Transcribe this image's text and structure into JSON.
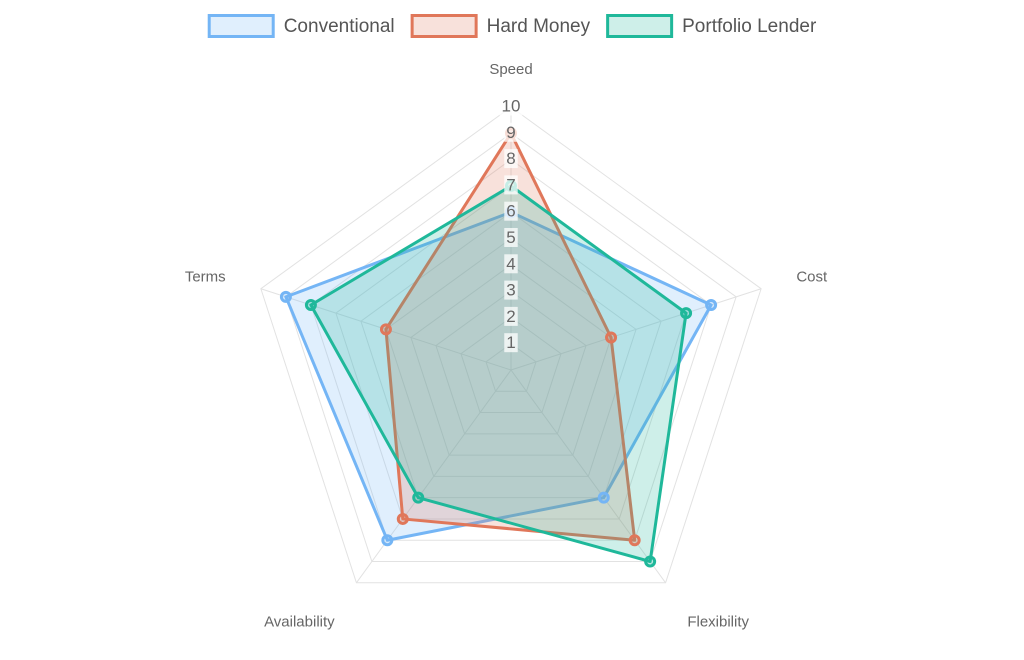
{
  "chart_data": {
    "type": "radar",
    "categories": [
      "Speed",
      "Cost",
      "Flexibility",
      "Availability",
      "Terms"
    ],
    "series": [
      {
        "name": "Conventional",
        "color": "#74b5f5",
        "values": [
          6,
          8,
          6,
          8,
          9
        ]
      },
      {
        "name": "Hard Money",
        "color": "#e0775a",
        "values": [
          9,
          4,
          8,
          7,
          5
        ]
      },
      {
        "name": "Portfolio Lender",
        "color": "#1fb89a",
        "values": [
          7,
          7,
          9,
          6,
          8
        ]
      }
    ],
    "ylim": [
      0,
      10
    ],
    "yticks": [
      1,
      2,
      3,
      4,
      5,
      6,
      7,
      8,
      9,
      10
    ],
    "grid": true,
    "legend": "top"
  }
}
